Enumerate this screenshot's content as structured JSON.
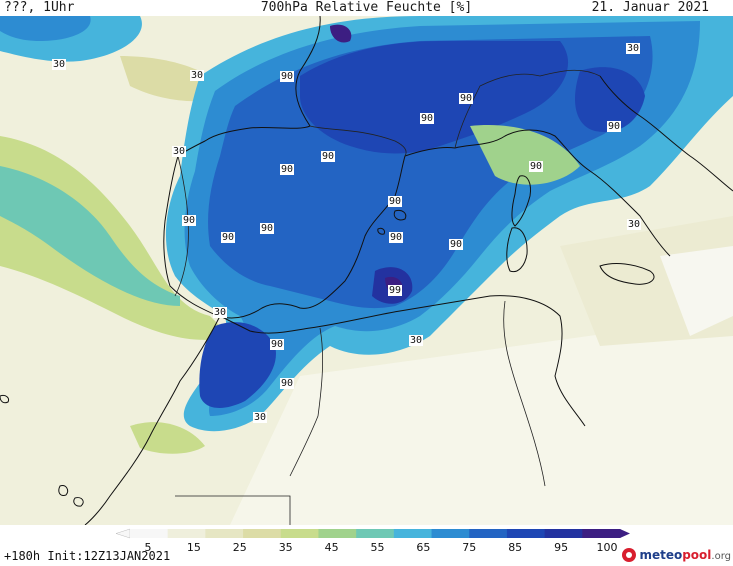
{
  "header": {
    "left": "???, 1Uhr",
    "title": "700hPa Relative Feuchte [%]",
    "date": "21. Januar 2021"
  },
  "footer": {
    "run_info": "+180h  Init:12Z13JAN2021",
    "logo_main": "meteo",
    "logo_accent": "pool",
    "logo_suffix": ".org"
  },
  "colorbar": {
    "ticks": [
      "5",
      "15",
      "25",
      "35",
      "45",
      "55",
      "65",
      "75",
      "85",
      "95",
      "100"
    ],
    "colors": [
      "#f7f7f7",
      "#efefdc",
      "#e6e6c3",
      "#dcdca6",
      "#c8dc8c",
      "#a0d28c",
      "#6ec8b4",
      "#46b4dc",
      "#2d8cd2",
      "#2364c3",
      "#1e46b4",
      "#2332a0",
      "#3c1e82"
    ]
  },
  "map": {
    "variable": "relative humidity 700hPa",
    "contour_labels": [
      {
        "text": "30",
        "id": "c30-atlantic"
      },
      {
        "text": "30",
        "id": "c30-biscay"
      },
      {
        "text": "30",
        "id": "c30-galicia"
      },
      {
        "text": "30",
        "id": "c30-northitaly"
      },
      {
        "text": "30",
        "id": "c30-gibraltar"
      },
      {
        "text": "30",
        "id": "c30-algeria"
      },
      {
        "text": "30",
        "id": "c30-morocco"
      },
      {
        "text": "30",
        "id": "c30-sicily"
      },
      {
        "text": "90",
        "id": "c90-france"
      },
      {
        "text": "90",
        "id": "c90-alps"
      },
      {
        "text": "90",
        "id": "c90-ligurian"
      },
      {
        "text": "90",
        "id": "c90-adriatic"
      },
      {
        "text": "90",
        "id": "c90-pyrenees"
      },
      {
        "text": "90",
        "id": "c90-northspain"
      },
      {
        "text": "90",
        "id": "c90-portugal"
      },
      {
        "text": "90",
        "id": "c90-madrid"
      },
      {
        "text": "90",
        "id": "c90-castile"
      },
      {
        "text": "90",
        "id": "c90-balearic"
      },
      {
        "text": "90",
        "id": "c90-baleares2"
      },
      {
        "text": "90",
        "id": "c90-sardinia-w"
      },
      {
        "text": "90",
        "id": "c90-corsica"
      },
      {
        "text": "99",
        "id": "c99-alboran"
      },
      {
        "text": "90",
        "id": "c90-morocco-n"
      },
      {
        "text": "90",
        "id": "c90-atlas"
      }
    ]
  }
}
